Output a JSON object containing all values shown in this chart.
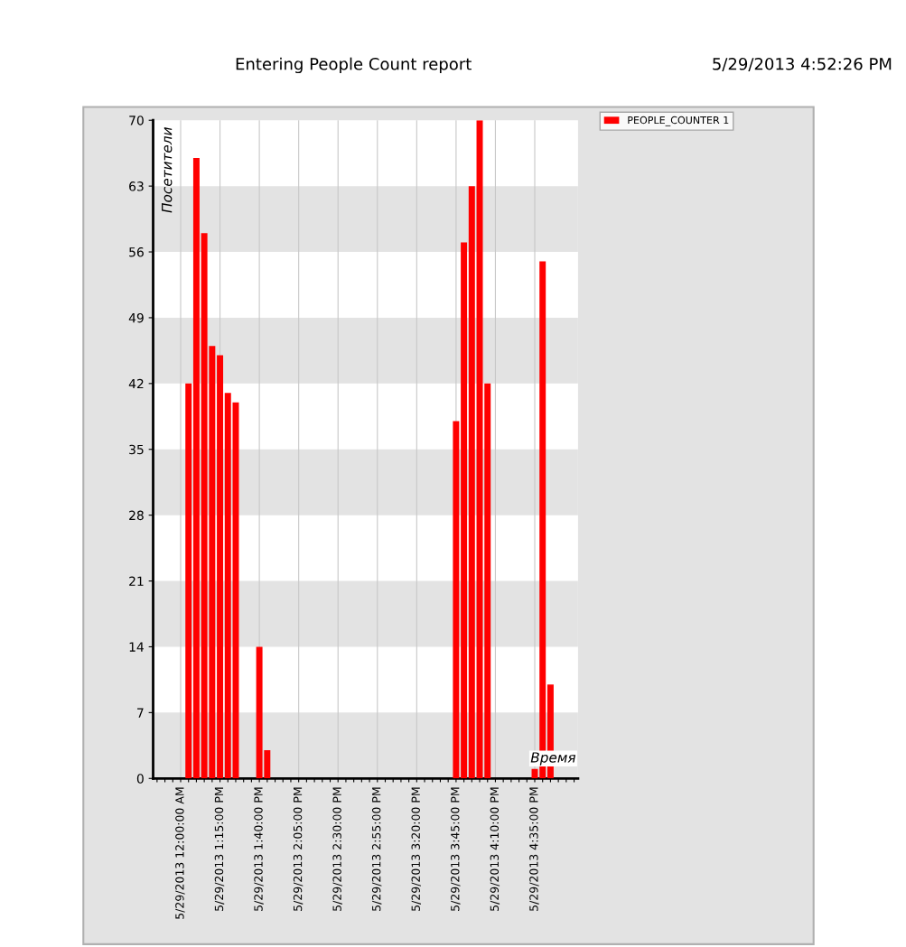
{
  "chart_data": {
    "type": "bar",
    "title": "Entering People Count report",
    "annotations": [
      "5/29/2013 4:52:26 PM"
    ],
    "xlabel": "Время",
    "ylabel": "Посетители",
    "categories": [
      null,
      null,
      null,
      "5/29/2013 12:00:00 AM",
      null,
      null,
      null,
      null,
      "5/29/2013 1:15:00 PM",
      null,
      null,
      null,
      null,
      "5/29/2013 1:40:00 PM",
      null,
      null,
      null,
      null,
      "5/29/2013 2:05:00 PM",
      null,
      null,
      null,
      null,
      "5/29/2013 2:30:00 PM",
      null,
      null,
      null,
      null,
      "5/29/2013 2:55:00 PM",
      null,
      null,
      null,
      null,
      "5/29/2013 3:20:00 PM",
      null,
      null,
      null,
      null,
      "5/29/2013 3:45:00 PM",
      null,
      null,
      null,
      null,
      "5/29/2013 4:10:00 PM",
      null,
      null,
      null,
      null,
      "5/29/2013 4:35:00 PM",
      null,
      null,
      null,
      null,
      null
    ],
    "series": [
      {
        "name": "PEOPLE_COUNTER 1",
        "color": "#ff0000",
        "values": [
          null,
          null,
          null,
          null,
          42,
          66,
          58,
          46,
          45,
          41,
          40,
          null,
          null,
          14,
          3,
          null,
          null,
          null,
          null,
          null,
          null,
          null,
          null,
          null,
          null,
          null,
          null,
          null,
          null,
          null,
          null,
          null,
          null,
          null,
          null,
          null,
          null,
          null,
          38,
          57,
          63,
          70,
          42,
          null,
          null,
          null,
          null,
          null,
          1,
          55,
          10,
          null,
          null,
          null
        ]
      }
    ],
    "ylim": [
      0,
      70
    ],
    "yticks": [
      0,
      7,
      14,
      21,
      28,
      35,
      42,
      49,
      56,
      63,
      70
    ],
    "grid": true,
    "legend": "top right"
  }
}
